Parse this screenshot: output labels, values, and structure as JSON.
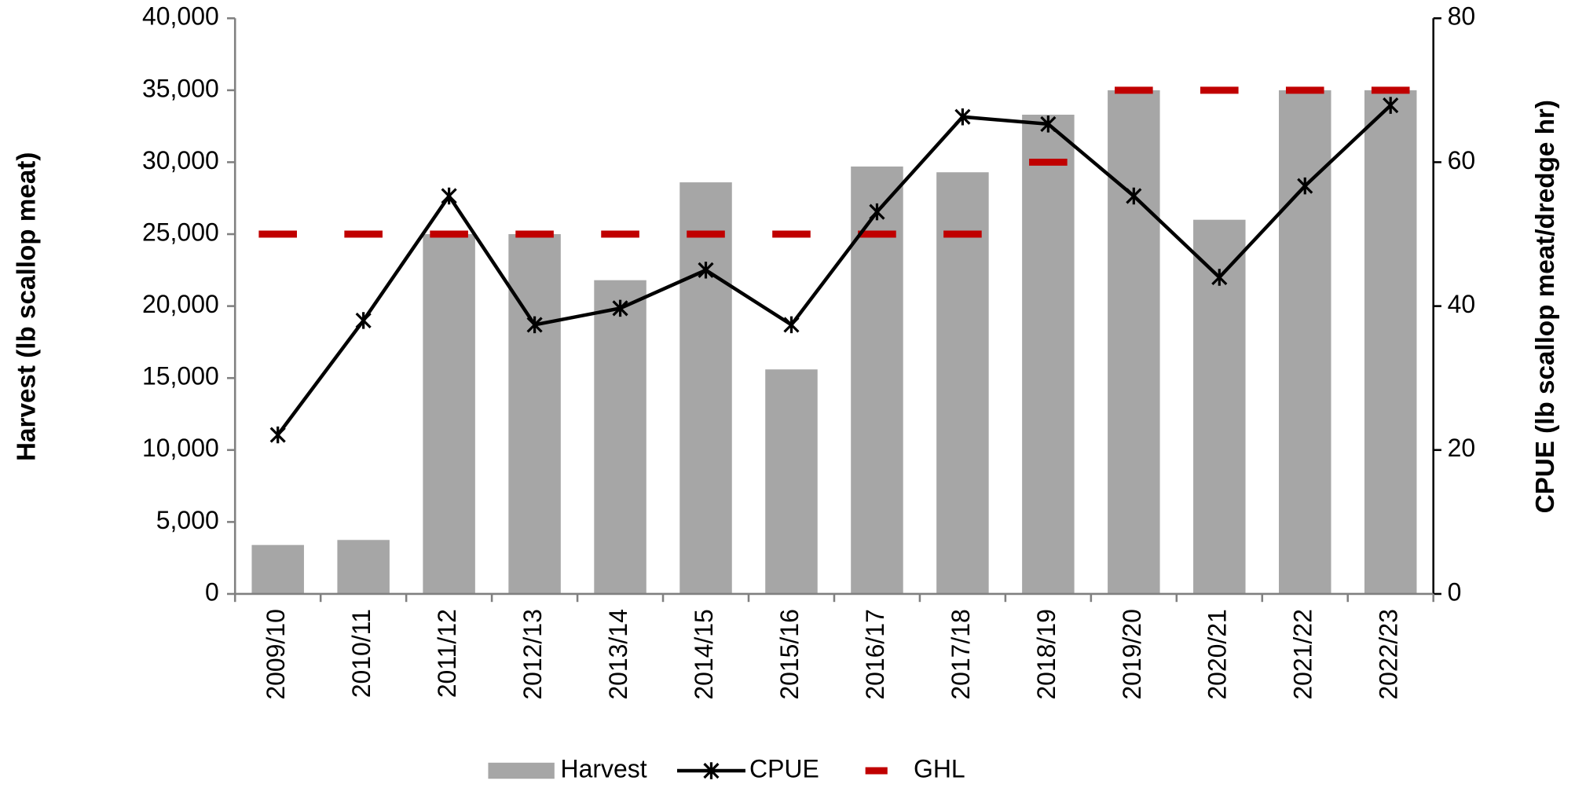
{
  "chart_data": {
    "type": "bar",
    "y_label": "Harvest (lb scallop meat)",
    "y2_label": "CPUE (lb scallop meat/dredge hr)",
    "categories": [
      "2009/10",
      "2010/11",
      "2011/12",
      "2012/13",
      "2013/14",
      "2014/15",
      "2015/16",
      "2016/17",
      "2017/18",
      "2018/19",
      "2019/20",
      "2020/21",
      "2021/22",
      "2022/23"
    ],
    "series": [
      {
        "name": "Harvest",
        "type": "bar",
        "color": "#a6a6a6",
        "values": [
          3400,
          3750,
          25000,
          25000,
          21800,
          28600,
          15600,
          29700,
          29300,
          33300,
          35000,
          26000,
          35000,
          35000
        ]
      },
      {
        "name": "CPUE",
        "type": "line",
        "axis": "y2",
        "color": "#000000",
        "values": [
          22.1,
          38.0,
          55.3,
          37.4,
          39.7,
          45.0,
          37.4,
          53.1,
          66.3,
          65.3,
          55.3,
          44.0,
          56.7,
          67.9
        ]
      },
      {
        "name": "GHL",
        "type": "dash",
        "color": "#c00000",
        "values": [
          25000,
          25000,
          25000,
          25000,
          25000,
          25000,
          25000,
          25000,
          25000,
          30000,
          35000,
          35000,
          35000,
          35000
        ]
      }
    ],
    "ylim": [
      0,
      40000
    ],
    "yticks": [
      0,
      {
        "value": 5000,
        "label": "5,000"
      },
      {
        "value": 10000,
        "label": "10,000"
      },
      {
        "value": 15000,
        "label": "15,000"
      },
      {
        "value": 20000,
        "label": "20,000"
      },
      {
        "value": 25000,
        "label": "25,000"
      },
      {
        "value": 30000,
        "label": "30,000"
      },
      {
        "value": 35000,
        "label": "35,000"
      },
      {
        "value": 40000,
        "label": "40,000"
      }
    ],
    "y2lim": [
      0,
      80
    ],
    "y2ticks": [
      0,
      20,
      40,
      60,
      80
    ],
    "grid": false,
    "legend": "bottom"
  }
}
